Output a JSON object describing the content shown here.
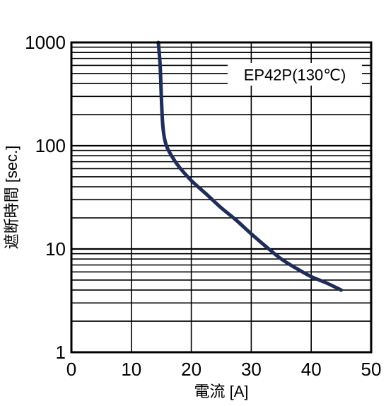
{
  "chart_data": {
    "type": "line",
    "xlabel": "電流 [A]",
    "ylabel": "遮断時間 [sec.]",
    "xlim": [
      0,
      50
    ],
    "ylim": [
      1,
      1000
    ],
    "yscale": "log",
    "grid": true,
    "x_ticks": [
      0,
      10,
      20,
      30,
      40,
      50
    ],
    "x_tick_labels": [
      "0",
      "10",
      "20",
      "30",
      "40",
      "50"
    ],
    "y_ticks": [
      1,
      10,
      100,
      1000
    ],
    "y_tick_labels": [
      "1",
      "10",
      "100",
      "1000"
    ],
    "legend": {
      "label": "EP42P(130℃)",
      "placement": "top-right"
    },
    "series": [
      {
        "name": "EP42P(130℃)",
        "color": "#1f2d5a",
        "x": [
          14.5,
          14.8,
          15.0,
          15.2,
          15.5,
          16.0,
          17.0,
          18.0,
          20.0,
          22.5,
          25.0,
          27.5,
          30.0,
          32.5,
          35.0,
          37.5,
          40.0,
          42.5,
          45.0
        ],
        "y": [
          1000,
          600,
          300,
          170,
          120,
          95,
          75,
          62,
          46,
          34,
          25,
          19,
          14,
          10.5,
          8.0,
          6.5,
          5.4,
          4.7,
          4.0
        ]
      }
    ]
  }
}
